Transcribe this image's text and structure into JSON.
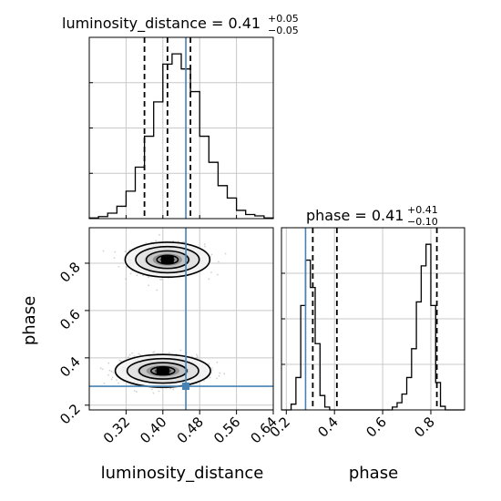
{
  "chart_data": {
    "type": "corner",
    "parameters": [
      "luminosity_distance",
      "phase"
    ],
    "truths": {
      "luminosity_distance": 0.45,
      "phase": 0.28
    },
    "colors": {
      "truth": "#4682b4",
      "hist": "#000000",
      "quantile": "#000000",
      "grid": "#c8c8c8",
      "samples": "#9a9a9a"
    },
    "grid": true,
    "panels": {
      "luminosity_distance_hist": {
        "title_main": "luminosity_distance = 0.41",
        "title_plus": "+0.05",
        "title_minus": "−0.05",
        "xlim": [
          0.24,
          0.64
        ],
        "quantiles": [
          0.36,
          0.41,
          0.46
        ],
        "bins": {
          "edges_start": 0.24,
          "width": 0.02,
          "counts": [
            1,
            3,
            8,
            18,
            40,
            75,
            120,
            170,
            225,
            240,
            218,
            185,
            120,
            82,
            48,
            30,
            12,
            6,
            4,
            1
          ]
        }
      },
      "phase_hist": {
        "title_main": "phase = 0.41",
        "title_plus": "+0.41",
        "title_minus": "−0.10",
        "xlim": [
          0.18,
          0.94
        ],
        "quantiles": [
          0.31,
          0.41,
          0.825
        ],
        "bins": {
          "edges_start": 0.18,
          "width": 0.02,
          "counts": [
            0,
            0,
            8,
            45,
            145,
            208,
            170,
            92,
            20,
            4,
            0,
            0,
            0,
            0,
            0,
            0,
            0,
            0,
            0,
            0,
            0,
            0,
            0,
            4,
            10,
            22,
            45,
            85,
            150,
            200,
            230,
            145,
            38,
            5,
            0,
            0,
            0,
            0
          ]
        }
      },
      "joint": {
        "xlim": [
          0.24,
          0.64
        ],
        "ylim": [
          0.18,
          0.95
        ],
        "modes": [
          {
            "x": 0.41,
            "y": 0.815,
            "sx": 0.04,
            "sy": 0.032,
            "weight": 0.45
          },
          {
            "x": 0.4,
            "y": 0.345,
            "sx": 0.045,
            "sy": 0.03,
            "weight": 0.55
          }
        ]
      }
    },
    "axes": {
      "x_label": "luminosity_distance",
      "y_label": "phase",
      "x_ticks_ld": [
        "0.32",
        "0.40",
        "0.48",
        "0.56",
        "0.64"
      ],
      "x_ticks_ld_values": [
        0.32,
        0.4,
        0.48,
        0.56,
        0.64
      ],
      "y_ticks_phase": [
        "0.2",
        "0.4",
        "0.6",
        "0.8"
      ],
      "y_ticks_phase_values": [
        0.2,
        0.4,
        0.6,
        0.8
      ],
      "x_label_phase": "phase",
      "x_ticks_phase": [
        "0.2",
        "0.4",
        "0.6",
        "0.8"
      ],
      "x_ticks_phase_values": [
        0.2,
        0.4,
        0.6,
        0.8
      ]
    }
  }
}
